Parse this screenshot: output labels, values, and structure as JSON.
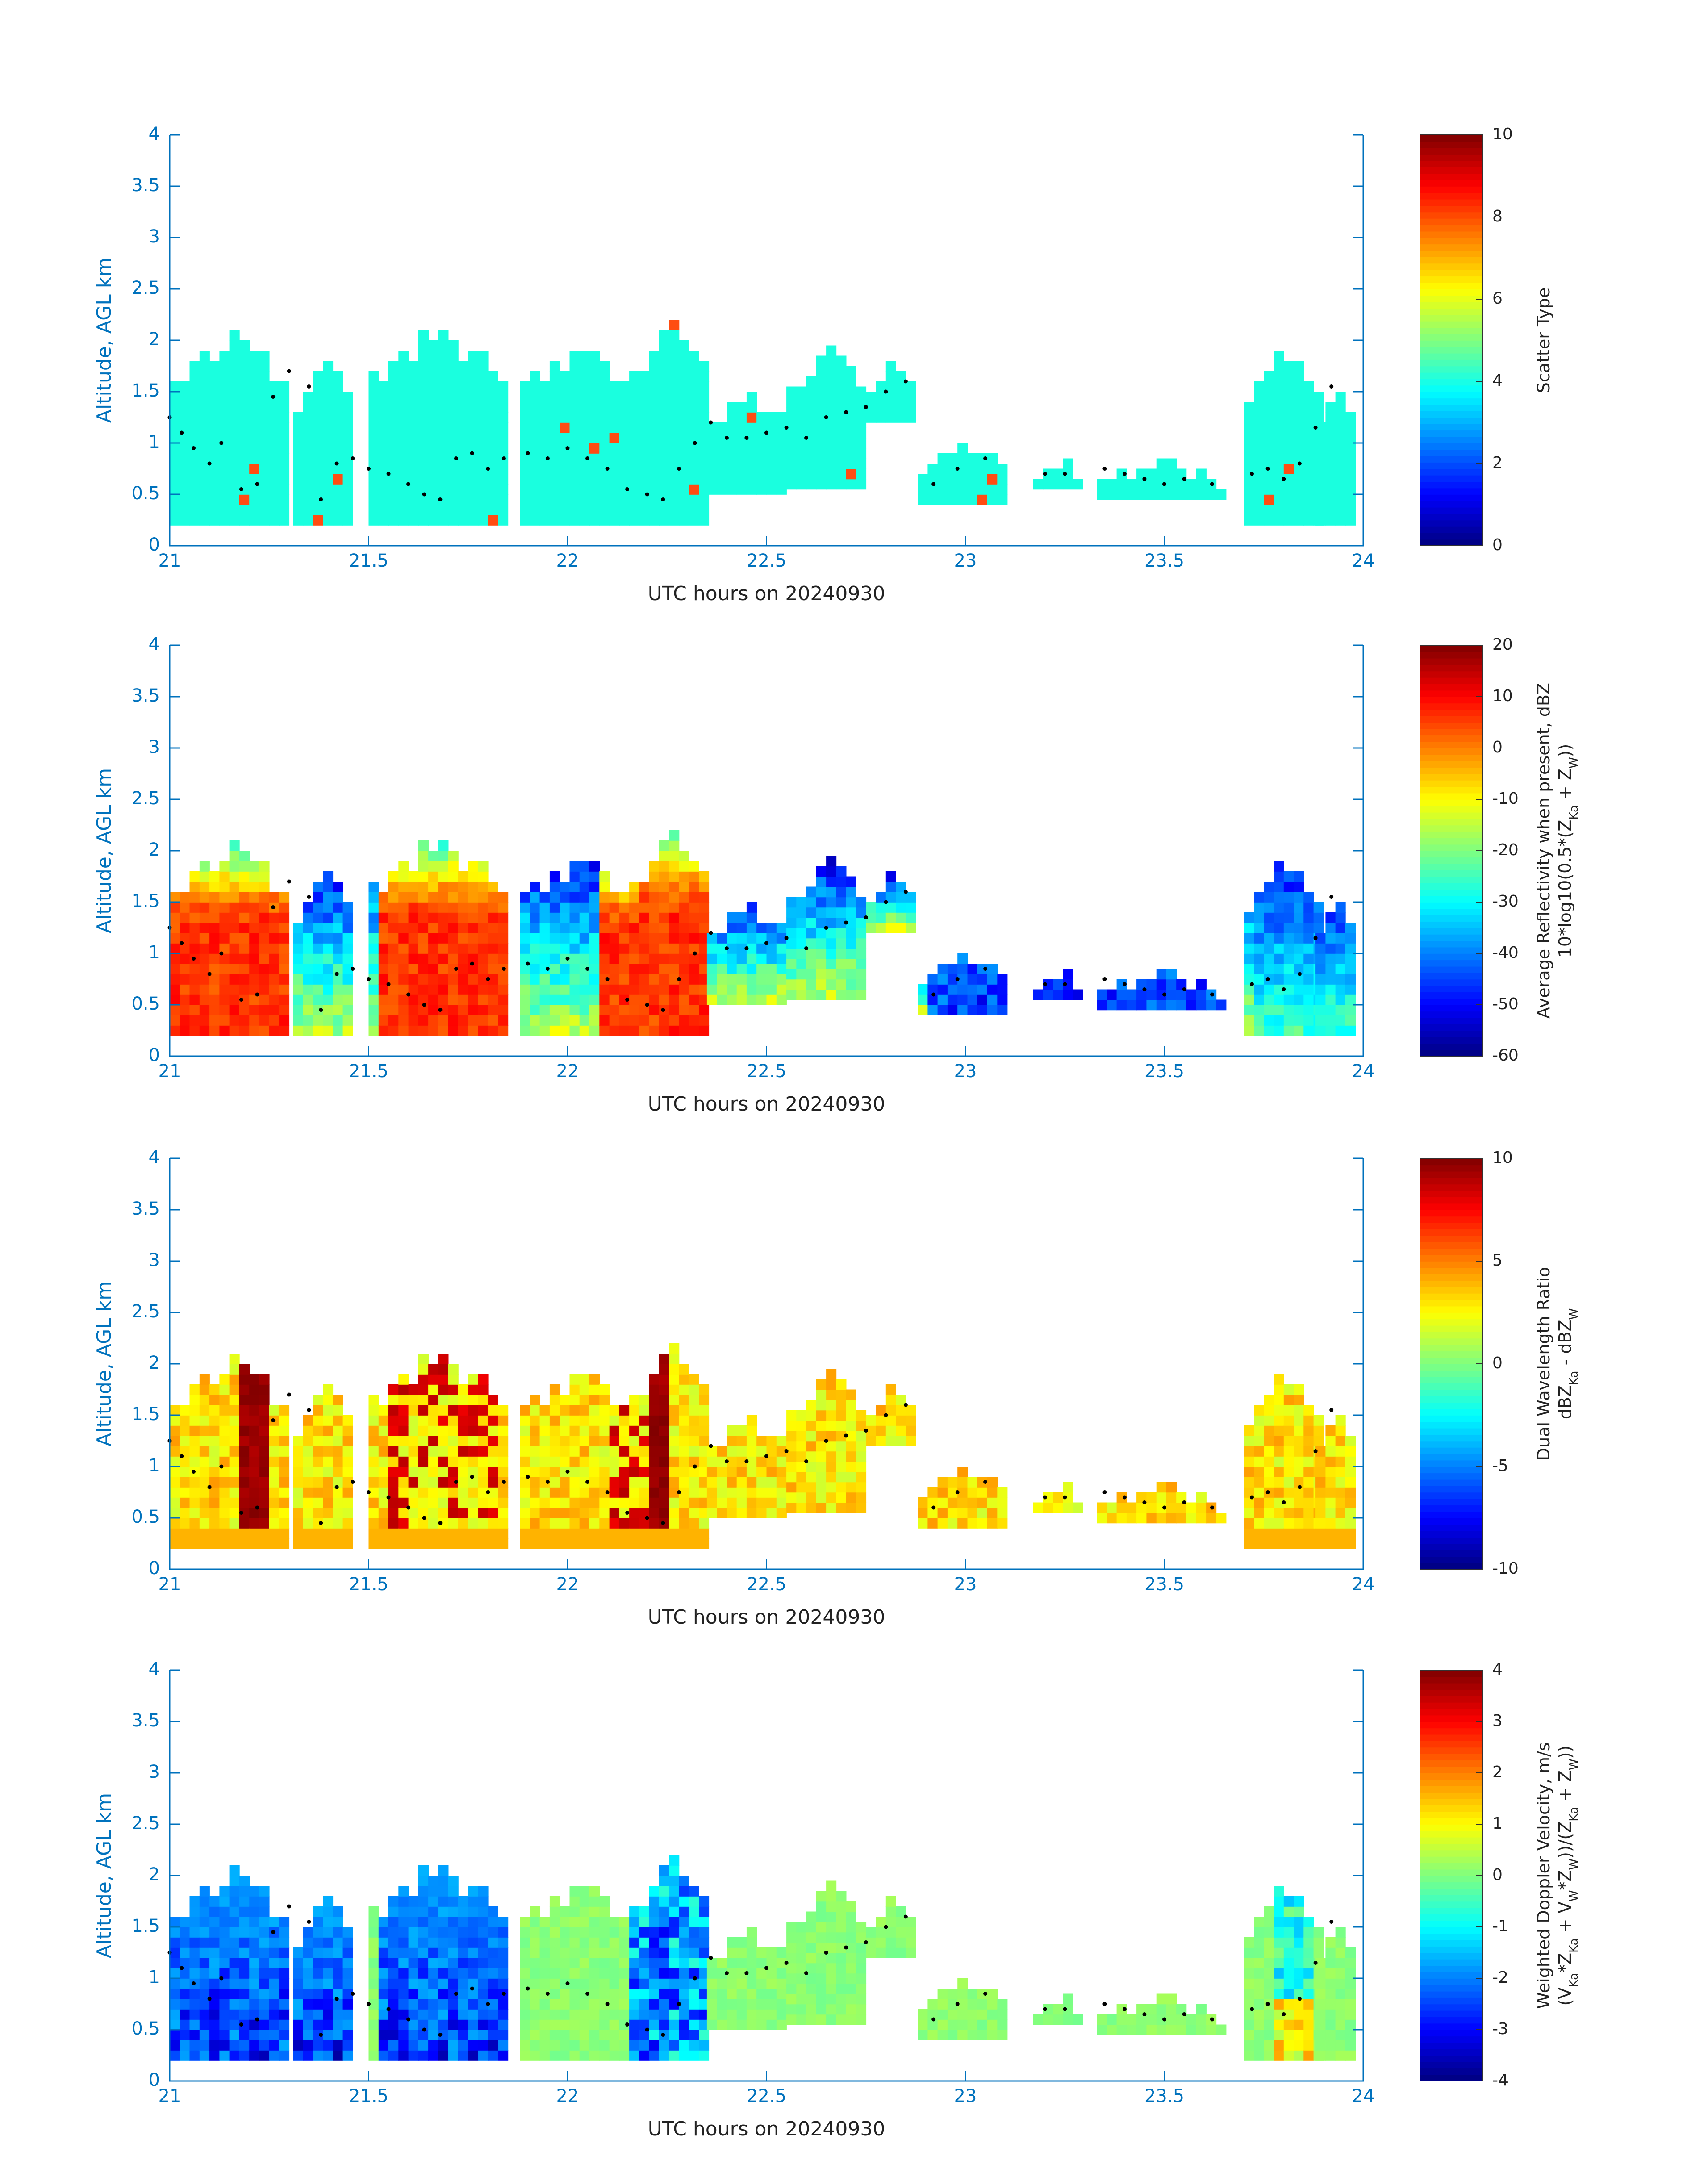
{
  "colors": {
    "axis": "#0072bd",
    "label": "#222222",
    "colormap": "jet",
    "scatter_fill": "#1affdf",
    "scatter_alt": "#ff4d12",
    "centroid_dots": "#000000"
  },
  "chart_data": [
    {
      "type": "heatmap",
      "ylabel": "Altitude, AGL km",
      "xlabel": "UTC hours on 20240930",
      "xlim": [
        21,
        24
      ],
      "ylim": [
        0,
        4
      ],
      "xticks": [
        "21",
        "21.5",
        "22",
        "22.5",
        "23",
        "23.5",
        "24"
      ],
      "yticks": [
        "0",
        "0.5",
        "1",
        "1.5",
        "2",
        "2.5",
        "3",
        "3.5",
        "4"
      ],
      "colorbar": {
        "label": "Scatter Type",
        "sublabel": "",
        "min": 0,
        "max": 10,
        "ticks": [
          "0",
          "2",
          "4",
          "6",
          "8",
          "10"
        ]
      },
      "field": "scatter",
      "grid": false
    },
    {
      "type": "heatmap",
      "ylabel": "Altitude, AGL km",
      "xlabel": "UTC hours on 20240930",
      "xlim": [
        21,
        24
      ],
      "ylim": [
        0,
        4
      ],
      "xticks": [
        "21",
        "21.5",
        "22",
        "22.5",
        "23",
        "23.5",
        "24"
      ],
      "yticks": [
        "0",
        "0.5",
        "1",
        "1.5",
        "2",
        "2.5",
        "3",
        "3.5",
        "4"
      ],
      "colorbar": {
        "label": "Average Reflectivity when present, dBZ",
        "sublabel": "10*log10(0.5*(Z_Ka + Z_W))",
        "min": -60,
        "max": 20,
        "ticks": [
          "-60",
          "-50",
          "-40",
          "-30",
          "-20",
          "-10",
          "0",
          "10",
          "20"
        ]
      },
      "field": "reflectivity",
      "grid": false
    },
    {
      "type": "heatmap",
      "ylabel": "Altitude, AGL km",
      "xlabel": "UTC hours on 20240930",
      "xlim": [
        21,
        24
      ],
      "ylim": [
        0,
        4
      ],
      "xticks": [
        "21",
        "21.5",
        "22",
        "22.5",
        "23",
        "23.5",
        "24"
      ],
      "yticks": [
        "0",
        "0.5",
        "1",
        "1.5",
        "2",
        "2.5",
        "3",
        "3.5",
        "4"
      ],
      "colorbar": {
        "label": "Dual Wavelength Ratio",
        "sublabel": "dBZ_Ka - dBZ_W",
        "min": -10,
        "max": 10,
        "ticks": [
          "-10",
          "-5",
          "0",
          "5",
          "10"
        ]
      },
      "field": "dwr",
      "grid": false
    },
    {
      "type": "heatmap",
      "ylabel": "Altitude, AGL km",
      "xlabel": "UTC hours on 20240930",
      "xlim": [
        21,
        24
      ],
      "ylim": [
        0,
        4
      ],
      "xticks": [
        "21",
        "21.5",
        "22",
        "22.5",
        "23",
        "23.5",
        "24"
      ],
      "yticks": [
        "0",
        "0.5",
        "1",
        "1.5",
        "2",
        "2.5",
        "3",
        "3.5",
        "4"
      ],
      "colorbar": {
        "label": "Weighted Doppler Velocity, m/s",
        "sublabel": "(V_Ka*Z_Ka + V_W*Z_W))/(Z_Ka + Z_W))",
        "min": -4,
        "max": 4,
        "ticks": [
          "-4",
          "-3",
          "-2",
          "-1",
          "0",
          "1",
          "2",
          "3",
          "4"
        ]
      },
      "field": "velocity",
      "grid": false
    }
  ],
  "cloud_columns": [
    {
      "x0": 21.0,
      "x1": 21.3,
      "bottom": 0.2,
      "top": 2.1
    },
    {
      "x0": 21.31,
      "x1": 21.45,
      "bottom": 0.2,
      "top": 1.85
    },
    {
      "x0": 21.5,
      "x1": 21.83,
      "bottom": 0.2,
      "top": 2.15
    },
    {
      "x0": 21.88,
      "x1": 22.18,
      "bottom": 0.2,
      "top": 2.0
    },
    {
      "x0": 22.18,
      "x1": 22.35,
      "bottom": 0.2,
      "top": 2.25
    },
    {
      "x0": 22.35,
      "x1": 22.55,
      "bottom": 0.5,
      "top": 1.5
    },
    {
      "x0": 22.55,
      "x1": 22.75,
      "bottom": 0.55,
      "top": 1.9
    },
    {
      "x0": 22.75,
      "x1": 22.86,
      "bottom": 1.2,
      "top": 1.75
    },
    {
      "x0": 22.88,
      "x1": 23.1,
      "bottom": 0.4,
      "top": 1.0
    },
    {
      "x0": 23.17,
      "x1": 23.28,
      "bottom": 0.55,
      "top": 0.85
    },
    {
      "x0": 23.33,
      "x1": 23.65,
      "bottom": 0.45,
      "top": 0.8
    },
    {
      "x0": 23.7,
      "x1": 23.88,
      "bottom": 0.2,
      "top": 1.95
    },
    {
      "x0": 23.88,
      "x1": 23.97,
      "bottom": 0.2,
      "top": 1.65
    }
  ],
  "centroid_track": {
    "x": [
      21.0,
      21.03,
      21.06,
      21.1,
      21.13,
      21.18,
      21.22,
      21.26,
      21.3,
      21.35,
      21.38,
      21.42,
      21.46,
      21.5,
      21.55,
      21.6,
      21.64,
      21.68,
      21.72,
      21.76,
      21.8,
      21.84,
      21.9,
      21.95,
      22.0,
      22.05,
      22.1,
      22.15,
      22.2,
      22.24,
      22.28,
      22.32,
      22.36,
      22.4,
      22.45,
      22.5,
      22.55,
      22.6,
      22.65,
      22.7,
      22.75,
      22.8,
      22.85,
      22.92,
      22.98,
      23.05,
      23.2,
      23.25,
      23.35,
      23.4,
      23.45,
      23.5,
      23.55,
      23.62,
      23.72,
      23.76,
      23.8,
      23.84,
      23.88,
      23.92
    ],
    "y": [
      1.25,
      1.1,
      0.95,
      0.8,
      1.0,
      0.55,
      0.6,
      1.45,
      1.7,
      1.55,
      0.45,
      0.8,
      0.85,
      0.75,
      0.7,
      0.6,
      0.5,
      0.45,
      0.85,
      0.9,
      0.75,
      0.85,
      0.9,
      0.85,
      0.95,
      0.85,
      0.75,
      0.55,
      0.5,
      0.45,
      0.75,
      1.0,
      1.2,
      1.05,
      1.05,
      1.1,
      1.15,
      1.05,
      1.25,
      1.3,
      1.35,
      1.5,
      1.6,
      0.6,
      0.75,
      0.85,
      0.7,
      0.7,
      0.75,
      0.7,
      0.65,
      0.6,
      0.65,
      0.6,
      0.7,
      0.75,
      0.65,
      0.8,
      1.15,
      1.55
    ]
  }
}
